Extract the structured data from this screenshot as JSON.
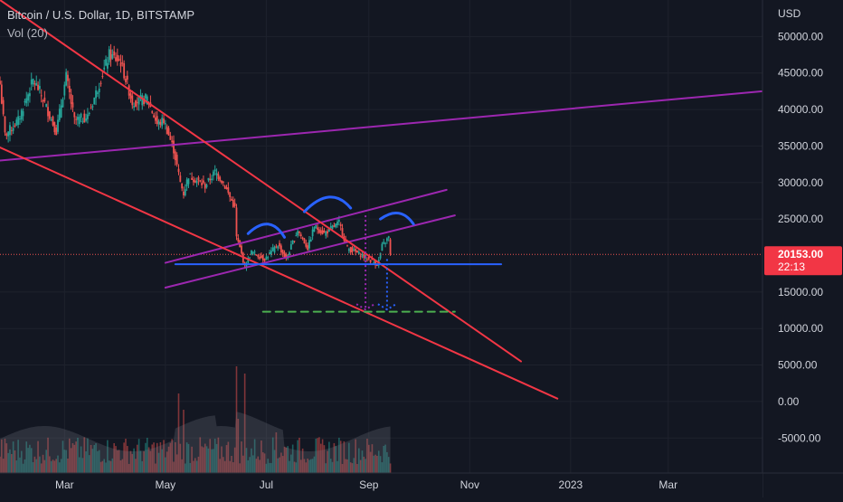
{
  "chart_data": {
    "type": "candlestick",
    "title": "Bitcoin / U.S. Dollar, 1D, BITSTAMP",
    "indicator": "Vol (20)",
    "currency_label": "USD",
    "y_ticks": [
      {
        "value": 50000,
        "label": "50000.00"
      },
      {
        "value": 45000,
        "label": "45000.00"
      },
      {
        "value": 40000,
        "label": "40000.00"
      },
      {
        "value": 35000,
        "label": "35000.00"
      },
      {
        "value": 30000,
        "label": "30000.00"
      },
      {
        "value": 25000,
        "label": "25000.00"
      },
      {
        "value": 15000,
        "label": "15000.00"
      },
      {
        "value": 10000,
        "label": "10000.00"
      },
      {
        "value": 5000,
        "label": "5000.00"
      },
      {
        "value": 0,
        "label": "0.00"
      },
      {
        "value": -5000,
        "label": "-5000.00"
      }
    ],
    "x_ticks": [
      "Mar",
      "May",
      "Jul",
      "Sep",
      "Nov",
      "2023",
      "Mar"
    ],
    "x_tick_dates": [
      "2022-03-01",
      "2022-05-01",
      "2022-07-01",
      "2022-09-01",
      "2022-11-01",
      "2023-01-01",
      "2023-03-01"
    ],
    "x_range": [
      "2022-01-21",
      "2023-04-27"
    ],
    "y_range": [
      -9800,
      55000
    ],
    "last_price": {
      "label": "20153.00",
      "countdown": "22:13",
      "value": 20153
    },
    "price_keypoints": [
      [
        "2022-01-21",
        43500
      ],
      [
        "2022-01-24",
        36500
      ],
      [
        "2022-02-01",
        38500
      ],
      [
        "2022-02-10",
        44000
      ],
      [
        "2022-02-14",
        42500
      ],
      [
        "2022-02-24",
        37000
      ],
      [
        "2022-03-02",
        44500
      ],
      [
        "2022-03-07",
        38500
      ],
      [
        "2022-03-15",
        39000
      ],
      [
        "2022-03-28",
        47500
      ],
      [
        "2022-04-04",
        46500
      ],
      [
        "2022-04-11",
        41000
      ],
      [
        "2022-04-20",
        41500
      ],
      [
        "2022-04-26",
        38000
      ],
      [
        "2022-04-30",
        38500
      ],
      [
        "2022-05-06",
        34500
      ],
      [
        "2022-05-10",
        30000
      ],
      [
        "2022-05-12",
        28500
      ],
      [
        "2022-05-15",
        31000
      ],
      [
        "2022-05-25",
        29500
      ],
      [
        "2022-05-31",
        31500
      ],
      [
        "2022-06-05",
        30000
      ],
      [
        "2022-06-12",
        26500
      ],
      [
        "2022-06-13",
        22500
      ],
      [
        "2022-06-15",
        21000
      ],
      [
        "2022-06-18",
        18500
      ],
      [
        "2022-06-22",
        20500
      ],
      [
        "2022-06-30",
        19500
      ],
      [
        "2022-07-08",
        21500
      ],
      [
        "2022-07-13",
        19500
      ],
      [
        "2022-07-20",
        23500
      ],
      [
        "2022-07-26",
        21000
      ],
      [
        "2022-07-30",
        24000
      ],
      [
        "2022-08-05",
        23000
      ],
      [
        "2022-08-14",
        24500
      ],
      [
        "2022-08-19",
        21000
      ],
      [
        "2022-08-28",
        20000
      ],
      [
        "2022-09-06",
        18800
      ],
      [
        "2022-09-07",
        19300
      ],
      [
        "2022-09-09",
        21300
      ],
      [
        "2022-09-13",
        22500
      ],
      [
        "2022-09-14",
        20153
      ]
    ],
    "overlays": {
      "red_lines": [
        {
          "name": "upper-resistance-line",
          "from": [
            "2022-01-21",
            55000
          ],
          "to": [
            "2022-12-02",
            5500
          ]
        },
        {
          "name": "lower-support-line",
          "from": [
            "2022-01-21",
            34800
          ],
          "to": [
            "2022-12-24",
            400
          ]
        }
      ],
      "purple_lines": [
        {
          "name": "long-rising-trendline",
          "from": [
            "2022-01-21",
            33000
          ],
          "to": [
            "2023-04-27",
            42500
          ]
        },
        {
          "name": "channel-upper-line",
          "from": [
            "2022-05-01",
            19000
          ],
          "to": [
            "2022-10-18",
            29000
          ]
        },
        {
          "name": "channel-lower-line",
          "from": [
            "2022-05-01",
            15600
          ],
          "to": [
            "2022-10-23",
            25500
          ]
        }
      ],
      "neckline": {
        "from": [
          "2022-05-07",
          18800
        ],
        "to": [
          "2022-11-20",
          18800
        ]
      },
      "target_line": {
        "from": [
          "2022-06-29",
          12300
        ],
        "to": [
          "2022-10-23",
          12300
        ]
      },
      "head_and_shoulders_arcs": [
        {
          "name": "left-shoulder-arc",
          "from": [
            "2022-06-20",
            23000
          ],
          "peak": [
            "2022-07-02",
            24300
          ],
          "to": [
            "2022-07-12",
            22500
          ]
        },
        {
          "name": "head-arc",
          "from": [
            "2022-07-24",
            26000
          ],
          "peak": [
            "2022-08-08",
            28000
          ],
          "to": [
            "2022-08-21",
            26500
          ]
        },
        {
          "name": "right-shoulder-arc",
          "from": [
            "2022-09-08",
            25000
          ],
          "peak": [
            "2022-09-19",
            25800
          ],
          "to": [
            "2022-09-28",
            24300
          ]
        }
      ],
      "projection_arrows": [
        {
          "name": "purple-projection-arrow",
          "from": [
            "2022-08-30",
            25500
          ],
          "to": [
            "2022-08-30",
            12600
          ]
        },
        {
          "name": "blue-projection-arrow",
          "from": [
            "2022-09-12",
            19500
          ],
          "to": [
            "2022-09-12",
            12600
          ]
        }
      ]
    }
  }
}
